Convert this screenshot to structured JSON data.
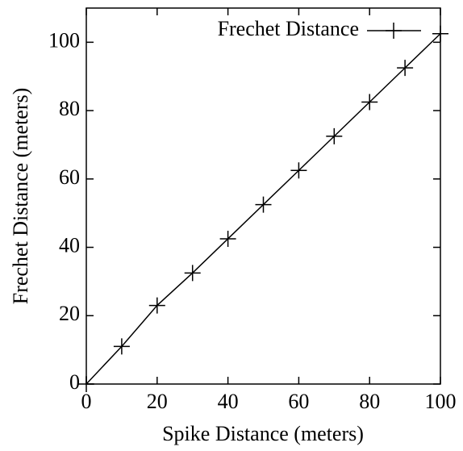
{
  "chart_data": {
    "type": "line",
    "x_label": "Spike Distance (meters)",
    "y_label": "Frechet Distance (meters)",
    "x": [
      0,
      10,
      20,
      30,
      40,
      50,
      60,
      70,
      80,
      90,
      100
    ],
    "series": [
      {
        "name": "Frechet Distance",
        "color": "#000000",
        "values": [
          0,
          11,
          23,
          32.5,
          42.5,
          52.5,
          62.5,
          72.5,
          82.5,
          92.5,
          102.5
        ]
      }
    ],
    "xlim": [
      0,
      100
    ],
    "ylim": [
      0,
      110
    ],
    "xticks": [
      0,
      20,
      40,
      60,
      80,
      100
    ],
    "yticks": [
      0,
      20,
      40,
      60,
      80,
      100
    ],
    "legend": "top-right",
    "grid": false
  }
}
